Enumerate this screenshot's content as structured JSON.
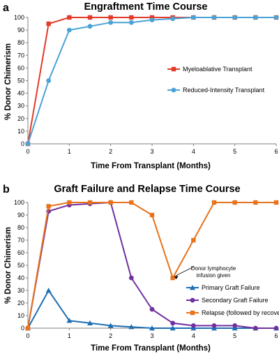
{
  "chart_data": [
    {
      "panel_label": "a",
      "type": "line",
      "title": "Engraftment Time Course",
      "xlabel": "Time From Transplant (Months)",
      "ylabel": "% Donor Chimerism",
      "xlim": [
        0,
        6
      ],
      "ylim": [
        0,
        100
      ],
      "xticks": [
        "0",
        "1",
        "2",
        "3",
        "4",
        "5",
        "6"
      ],
      "yticks": [
        "0",
        "10",
        "20",
        "30",
        "40",
        "50",
        "60",
        "70",
        "80",
        "90",
        "100"
      ],
      "legend_position": "right",
      "series": [
        {
          "name": "Myeloablative Transplant",
          "color": "#e23b2a",
          "marker": "square",
          "x": [
            0,
            0.5,
            1,
            1.5,
            2,
            2.5,
            3,
            3.5,
            4,
            4.5,
            5,
            5.5,
            6
          ],
          "y": [
            0,
            95,
            100,
            100,
            100,
            100,
            100,
            100,
            100,
            100,
            100,
            100,
            100
          ]
        },
        {
          "name": "Reduced-Intensity Transplant",
          "color": "#4aa3d6",
          "marker": "circle",
          "x": [
            0,
            0.5,
            1,
            1.5,
            2,
            2.5,
            3,
            3.5,
            4,
            4.5,
            5,
            5.5,
            6
          ],
          "y": [
            0,
            50,
            90,
            93,
            96,
            96,
            98,
            99,
            100,
            100,
            100,
            100,
            100
          ]
        }
      ]
    },
    {
      "panel_label": "b",
      "type": "line",
      "title": "Graft Failure and Relapse Time Course",
      "xlabel": "Time From Transplant (Months)",
      "ylabel": "% Donor Chimerism",
      "xlim": [
        0,
        6
      ],
      "ylim": [
        0,
        100
      ],
      "xticks": [
        "0",
        "1",
        "2",
        "3",
        "4",
        "5",
        "6"
      ],
      "yticks": [
        "0",
        "10",
        "20",
        "30",
        "40",
        "50",
        "60",
        "70",
        "80",
        "90",
        "100"
      ],
      "legend_position": "bottom-right",
      "annotation": {
        "lines": [
          "Donor lymphocyte",
          "infusion given"
        ],
        "x": 3.5,
        "y": 40
      },
      "series": [
        {
          "name": "Primary Graft Failure",
          "color": "#1f6fb4",
          "marker": "triangle",
          "x": [
            0,
            0.5,
            1,
            1.5,
            2,
            2.5,
            3,
            3.5,
            4,
            4.5,
            5,
            5.5,
            6
          ],
          "y": [
            0,
            30,
            6,
            4,
            2,
            1,
            0,
            0,
            0,
            0,
            0,
            0,
            0
          ]
        },
        {
          "name": "Secondary Graft Failure",
          "color": "#7030a0",
          "marker": "circle",
          "x": [
            0,
            0.5,
            1,
            1.5,
            2,
            2.5,
            3,
            3.5,
            4,
            4.5,
            5,
            5.5,
            6
          ],
          "y": [
            0,
            93,
            98,
            99,
            100,
            40,
            15,
            4,
            2,
            2,
            2,
            0,
            0
          ]
        },
        {
          "name": "Relapse (followed by recovery)",
          "color": "#e8731c",
          "marker": "square",
          "x": [
            0,
            0.5,
            1,
            1.5,
            2,
            2.5,
            3,
            3.5,
            4,
            4.5,
            5,
            5.5,
            6
          ],
          "y": [
            0,
            97,
            100,
            100,
            100,
            100,
            90,
            40,
            70,
            100,
            100,
            100,
            100
          ]
        }
      ]
    }
  ]
}
